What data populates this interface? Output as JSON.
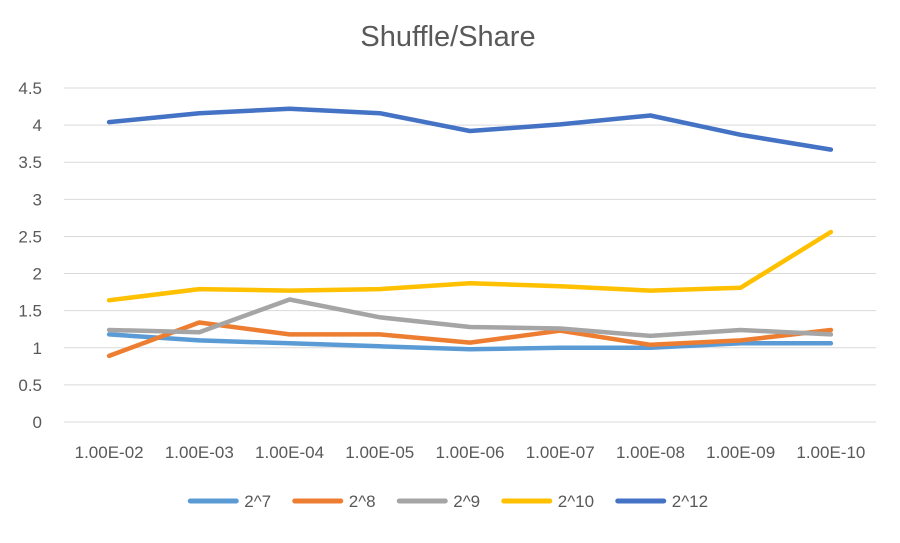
{
  "chart_data": {
    "type": "line",
    "title": "Shuffle/Share",
    "xlabel": "",
    "ylabel": "",
    "categories": [
      "1.00E-02",
      "1.00E-03",
      "1.00E-04",
      "1.00E-05",
      "1.00E-06",
      "1.00E-07",
      "1.00E-08",
      "1.00E-09",
      "1.00E-10"
    ],
    "yticks": [
      "0",
      "0.5",
      "1",
      "1.5",
      "2",
      "2.5",
      "3",
      "3.5",
      "4",
      "4.5"
    ],
    "ylim": [
      0,
      4.5
    ],
    "grid": true,
    "legend_position": "bottom",
    "series": [
      {
        "name": "2^7",
        "color": "#5B9BD5",
        "values": [
          1.18,
          1.1,
          1.06,
          1.02,
          0.98,
          1.0,
          1.0,
          1.06,
          1.06
        ]
      },
      {
        "name": "2^8",
        "color": "#ED7D31",
        "values": [
          0.89,
          1.34,
          1.18,
          1.18,
          1.07,
          1.23,
          1.04,
          1.1,
          1.24
        ]
      },
      {
        "name": "2^9",
        "color": "#A5A5A5",
        "values": [
          1.24,
          1.21,
          1.65,
          1.41,
          1.28,
          1.26,
          1.16,
          1.24,
          1.18
        ]
      },
      {
        "name": "2^10",
        "color": "#FFC000",
        "values": [
          1.64,
          1.79,
          1.77,
          1.79,
          1.87,
          1.83,
          1.77,
          1.81,
          2.56
        ]
      },
      {
        "name": "2^12",
        "color": "#4472C4",
        "values": [
          4.04,
          4.16,
          4.22,
          4.16,
          3.92,
          4.01,
          4.13,
          3.87,
          3.67
        ]
      }
    ]
  }
}
